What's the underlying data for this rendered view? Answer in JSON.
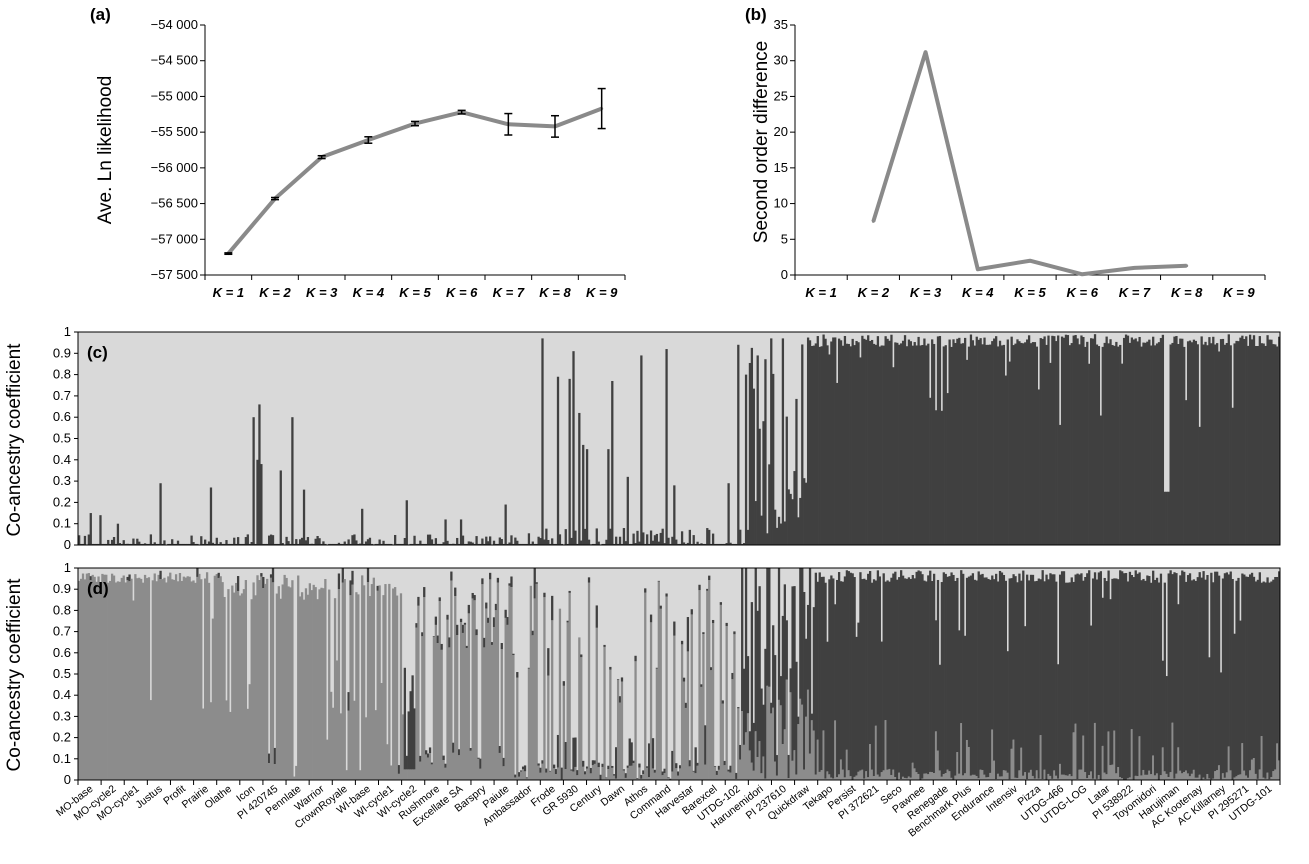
{
  "colors": {
    "light": "#d9d9d9",
    "mid": "#8c8c8c",
    "dark": "#404040",
    "line": "#8a8a8a",
    "axis": "#000000"
  },
  "chart_data": [
    {
      "type": "line",
      "panel_label": "(a)",
      "ylabel": "Ave. Ln likelihood",
      "categories": [
        "K = 1",
        "K = 2",
        "K = 3",
        "K = 4",
        "K = 5",
        "K = 6",
        "K = 7",
        "K = 8",
        "K = 9"
      ],
      "values": [
        -57200,
        -56430,
        -55850,
        -55610,
        -55380,
        -55220,
        -55390,
        -55420,
        -55170
      ],
      "errors": [
        10,
        15,
        20,
        45,
        30,
        25,
        150,
        150,
        280
      ],
      "ylim": [
        -57500,
        -54000
      ],
      "yticks": [
        -57500,
        -57000,
        -56500,
        -56000,
        -55500,
        -55000,
        -54500,
        -54000
      ],
      "ytick_labels": [
        "−57 500",
        "−57 000",
        "−56 500",
        "−56 000",
        "−55 500",
        "−55 000",
        "−54 500",
        "−54 000"
      ]
    },
    {
      "type": "line",
      "panel_label": "(b)",
      "ylabel": "Second order difference",
      "categories": [
        "K = 1",
        "K = 2",
        "K = 3",
        "K = 4",
        "K = 5",
        "K = 6",
        "K = 7",
        "K = 8",
        "K = 9"
      ],
      "values": [
        null,
        7.5,
        31.2,
        0.8,
        2.0,
        0.1,
        1.0,
        1.3,
        null
      ],
      "ylim": [
        0,
        35
      ],
      "yticks": [
        0,
        5,
        10,
        15,
        20,
        25,
        30,
        35
      ]
    },
    {
      "type": "bar",
      "panel_label": "(c)",
      "ylabel": "Co-ancestry coefficient",
      "ylim": [
        0,
        1
      ],
      "yticks": [
        "0",
        "0.1",
        "0.2",
        "0.3",
        "0.4",
        "0.5",
        "0.6",
        "0.7",
        "0.8",
        "0.9",
        "1"
      ],
      "stacked": true,
      "clusters": 2,
      "peaks": [
        [
          0.01,
          0.15
        ],
        [
          0.018,
          0.14
        ],
        [
          0.032,
          0.1
        ],
        [
          0.068,
          0.29
        ],
        [
          0.11,
          0.27
        ],
        [
          0.145,
          0.6
        ],
        [
          0.148,
          0.4
        ],
        [
          0.15,
          0.66
        ],
        [
          0.152,
          0.38
        ],
        [
          0.168,
          0.35
        ],
        [
          0.178,
          0.6
        ],
        [
          0.187,
          0.26
        ],
        [
          0.235,
          0.17
        ],
        [
          0.272,
          0.21
        ],
        [
          0.305,
          0.12
        ],
        [
          0.318,
          0.12
        ],
        [
          0.355,
          0.19
        ],
        [
          0.385,
          0.97
        ],
        [
          0.398,
          0.79
        ],
        [
          0.408,
          0.78
        ],
        [
          0.412,
          0.91
        ],
        [
          0.416,
          0.62
        ],
        [
          0.42,
          0.47
        ],
        [
          0.423,
          0.45
        ],
        [
          0.44,
          0.45
        ],
        [
          0.443,
          0.77
        ],
        [
          0.456,
          0.32
        ],
        [
          0.468,
          0.89
        ],
        [
          0.488,
          0.92
        ],
        [
          0.495,
          0.28
        ],
        [
          0.54,
          0.29
        ],
        [
          0.548,
          0.94
        ],
        [
          0.555,
          0.8
        ],
        [
          0.565,
          0.89
        ],
        [
          0.575,
          0.97
        ],
        [
          0.585,
          0.97
        ],
        [
          0.592,
          0.24
        ],
        [
          0.598,
          0.13
        ]
      ]
    },
    {
      "type": "bar",
      "panel_label": "(d)",
      "ylabel": "Co-ancestry coefficient",
      "ylim": [
        0,
        1
      ],
      "yticks": [
        "0",
        "0.1",
        "0.2",
        "0.3",
        "0.4",
        "0.5",
        "0.6",
        "0.7",
        "0.8",
        "0.9",
        "1"
      ],
      "stacked": true,
      "clusters": 3,
      "cultivars": [
        "MO-base",
        "MO-cycle2",
        "MO-cycle1",
        "Justus",
        "Profit",
        "Prairie",
        "Olathe",
        "Icon",
        "PI 420745",
        "Pennlate",
        "Warrior",
        "CrownRoyale",
        "WI-base",
        "WI-cycle1",
        "WI-cycle2",
        "Rushmore",
        "Excellate SA",
        "Barspry",
        "Paiute",
        "Ambassador",
        "Frode",
        "GR 5930",
        "Century",
        "Dawn",
        "Athos",
        "Command",
        "Harvestar",
        "Barexcel",
        "UTDG-102",
        "Harunemidori",
        "PI 237610",
        "Quickdraw",
        "Tekapo",
        "Persist",
        "PI 372621",
        "Seco",
        "Pawnee",
        "Renegade",
        "Benchmark Plus",
        "Endurance",
        "Intensiv",
        "Pizza",
        "UTDG-466",
        "UTDG-LOG",
        "Latar",
        "PI 538922",
        "Toyomidori",
        "Harujiman",
        "AC Kootenay",
        "AC Killarney",
        "PI 295271",
        "UTDG-101"
      ]
    }
  ]
}
